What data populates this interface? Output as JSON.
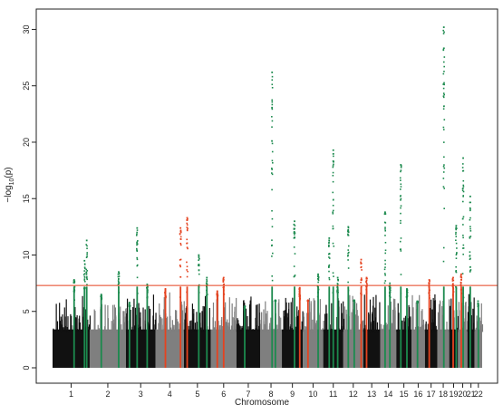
{
  "chart_data": {
    "type": "scatter",
    "subtype": "manhattan",
    "title": "",
    "xlabel": "Chromosome",
    "ylabel_parts": {
      "prefix": "−log",
      "sub": "10",
      "suffix": "(p)"
    },
    "ylim": [
      0,
      31
    ],
    "yticks": [
      0,
      5,
      10,
      15,
      20,
      25,
      30
    ],
    "chromosomes": [
      "1",
      "2",
      "3",
      "4",
      "5",
      "6",
      "7",
      "8",
      "9",
      "10",
      "11",
      "12",
      "13",
      "14",
      "15",
      "16",
      "17",
      "18",
      "19",
      "20",
      "21",
      "22"
    ],
    "chromosome_colors": [
      "#111111",
      "#7f7f7f"
    ],
    "threshold": {
      "value": 7.3,
      "color": "#e5421f"
    },
    "highlight_colors": {
      "green": "#1c8a4e",
      "red": "#e5421f"
    },
    "baseline_max": 6,
    "hits": [
      {
        "chr": "1",
        "pos": 0.58,
        "peak": 7.8,
        "color": "green"
      },
      {
        "chr": "1",
        "pos": 0.86,
        "peak": 9.5,
        "color": "green"
      },
      {
        "chr": "1",
        "pos": 0.92,
        "peak": 11.3,
        "color": "green"
      },
      {
        "chr": "2",
        "pos": 0.32,
        "peak": 6.5,
        "color": "green"
      },
      {
        "chr": "2",
        "pos": 0.8,
        "peak": 8.5,
        "color": "green"
      },
      {
        "chr": "3",
        "pos": 0.12,
        "peak": 5.5,
        "color": "green"
      },
      {
        "chr": "3",
        "pos": 0.38,
        "peak": 12.4,
        "color": "green"
      },
      {
        "chr": "3",
        "pos": 0.72,
        "peak": 7.4,
        "color": "green"
      },
      {
        "chr": "4",
        "pos": 0.35,
        "peak": 7.0,
        "color": "red"
      },
      {
        "chr": "4",
        "pos": 0.88,
        "peak": 12.4,
        "color": "red"
      },
      {
        "chr": "5",
        "pos": 0.12,
        "peak": 13.3,
        "color": "red"
      },
      {
        "chr": "5",
        "pos": 0.55,
        "peak": 10.0,
        "color": "green"
      },
      {
        "chr": "5",
        "pos": 0.85,
        "peak": 8.0,
        "color": "green"
      },
      {
        "chr": "6",
        "pos": 0.25,
        "peak": 6.8,
        "color": "red"
      },
      {
        "chr": "6",
        "pos": 0.5,
        "peak": 8.0,
        "color": "red"
      },
      {
        "chr": "7",
        "pos": 0.35,
        "peak": 5.2,
        "color": "green"
      },
      {
        "chr": "8",
        "pos": 0.55,
        "peak": 26.2,
        "color": "green"
      },
      {
        "chr": "8",
        "pos": 0.7,
        "peak": 6.0,
        "color": "green"
      },
      {
        "chr": "9",
        "pos": 0.6,
        "peak": 13.0,
        "color": "green"
      },
      {
        "chr": "9",
        "pos": 0.85,
        "peak": 7.1,
        "color": "red"
      },
      {
        "chr": "10",
        "pos": 0.25,
        "peak": 6.0,
        "color": "red"
      },
      {
        "chr": "10",
        "pos": 0.75,
        "peak": 8.3,
        "color": "green"
      },
      {
        "chr": "11",
        "pos": 0.3,
        "peak": 11.5,
        "color": "green"
      },
      {
        "chr": "11",
        "pos": 0.5,
        "peak": 19.3,
        "color": "green"
      },
      {
        "chr": "11",
        "pos": 0.72,
        "peak": 8.0,
        "color": "green"
      },
      {
        "chr": "12",
        "pos": 0.25,
        "peak": 12.5,
        "color": "green"
      },
      {
        "chr": "12",
        "pos": 0.55,
        "peak": 6.0,
        "color": "green"
      },
      {
        "chr": "12",
        "pos": 0.9,
        "peak": 9.6,
        "color": "red"
      },
      {
        "chr": "13",
        "pos": 0.2,
        "peak": 8.0,
        "color": "red"
      },
      {
        "chr": "14",
        "pos": 0.3,
        "peak": 13.8,
        "color": "green"
      },
      {
        "chr": "14",
        "pos": 0.6,
        "peak": 7.5,
        "color": "green"
      },
      {
        "chr": "15",
        "pos": 0.3,
        "peak": 18.0,
        "color": "green"
      },
      {
        "chr": "15",
        "pos": 0.7,
        "peak": 7.0,
        "color": "green"
      },
      {
        "chr": "16",
        "pos": 0.45,
        "peak": 5.8,
        "color": "green"
      },
      {
        "chr": "17",
        "pos": 0.35,
        "peak": 7.8,
        "color": "red"
      },
      {
        "chr": "18",
        "pos": 0.55,
        "peak": 30.2,
        "color": "green"
      },
      {
        "chr": "19",
        "pos": 0.45,
        "peak": 8.0,
        "color": "red"
      },
      {
        "chr": "19",
        "pos": 0.8,
        "peak": 12.6,
        "color": "green"
      },
      {
        "chr": "20",
        "pos": 0.55,
        "peak": 18.6,
        "color": "green"
      },
      {
        "chr": "20",
        "pos": 0.35,
        "peak": 8.3,
        "color": "red"
      },
      {
        "chr": "21",
        "pos": 0.4,
        "peak": 15.2,
        "color": "green"
      },
      {
        "chr": "22",
        "pos": 0.5,
        "peak": 5.5,
        "color": "green"
      }
    ]
  }
}
